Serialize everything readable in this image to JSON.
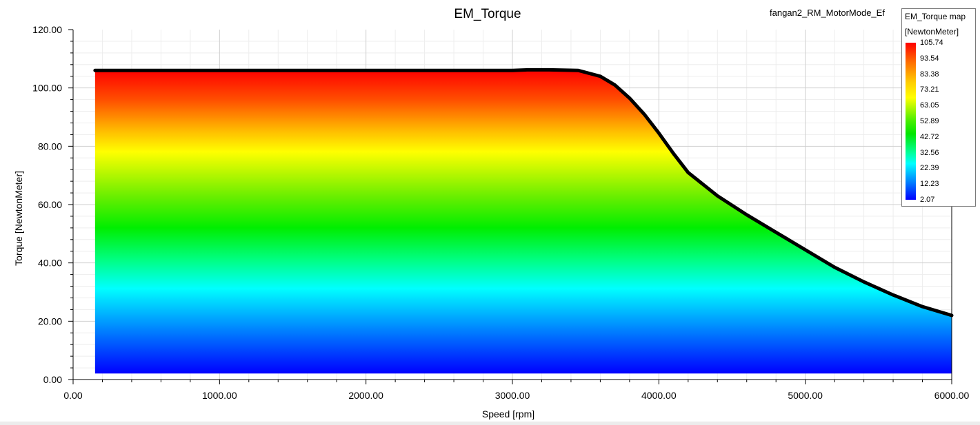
{
  "chart_data": {
    "type": "area",
    "title": "EM_Torque",
    "subtitle": "fangan2_RM_MotorMode_Ef",
    "xlabel": "Speed [rpm]",
    "ylabel": "Torque [NewtonMeter]",
    "xlim": [
      0,
      6000
    ],
    "ylim": [
      0,
      120
    ],
    "xticks": [
      "0.00",
      "1000.00",
      "2000.00",
      "3000.00",
      "4000.00",
      "5000.00",
      "6000.00"
    ],
    "yticks": [
      "0.00",
      "20.00",
      "40.00",
      "60.00",
      "80.00",
      "100.00",
      "120.00"
    ],
    "grid": true,
    "fill_min_torque": 2.07,
    "boundary": {
      "name": "",
      "x": [
        150,
        1000,
        2000,
        3000,
        3100,
        3250,
        3450,
        3600,
        3700,
        3800,
        3900,
        4000,
        4100,
        4200,
        4400,
        4600,
        4800,
        5000,
        5200,
        5400,
        5600,
        5800,
        6000
      ],
      "y": [
        106.0,
        106.0,
        106.0,
        106.0,
        106.2,
        106.2,
        106.0,
        104.0,
        101.0,
        96.5,
        91.0,
        84.5,
        77.5,
        71.0,
        63.0,
        56.5,
        50.5,
        44.5,
        38.5,
        33.5,
        29.0,
        25.0,
        22.0
      ]
    },
    "colorbar": {
      "title": "EM_Torque map",
      "unit": "[NewtonMeter]",
      "ticks": [
        "105.74",
        "93.54",
        "83.38",
        "73.21",
        "63.05",
        "52.89",
        "42.72",
        "32.56",
        "22.39",
        "12.23",
        "2.07"
      ],
      "colors": [
        "#ff0000",
        "#ff6a00",
        "#ffcc00",
        "#ffff00",
        "#7fff00",
        "#00ff00",
        "#00ff7f",
        "#00ffff",
        "#00aaff",
        "#0044ff",
        "#0000ff"
      ]
    }
  }
}
